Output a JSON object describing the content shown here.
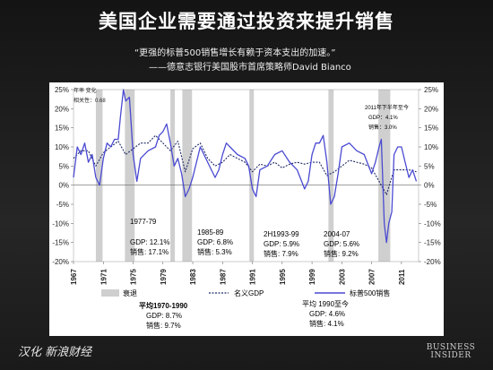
{
  "title": "美国企业需要通过投资来提升销售",
  "quote": {
    "text": "“更强的标普500销售增长有赖于资本支出的加速。”",
    "source": "——德意志银行美国股市首席策略师David   Bianco"
  },
  "footer": {
    "credit": "汉化 新浪财经",
    "logo_line1": "BUSINESS",
    "logo_line2": "INSIDER"
  },
  "colors": {
    "sales": "#4a4ad2",
    "gdp": "#1f2a66",
    "recession": "#cfcfcf"
  },
  "chart_data": {
    "type": "line",
    "ylim": [
      -20,
      25
    ],
    "yticks": [
      "25%",
      "20%",
      "15%",
      "10%",
      "5%",
      "0%",
      "-5%",
      "-10%",
      "-15%",
      "-20%"
    ],
    "yaxis_note": [
      "年率 变化",
      "相关性：0.68"
    ],
    "xticks": [
      "1967",
      "1971",
      "1975",
      "1979",
      "1983",
      "1987",
      "1991",
      "1995",
      "1999",
      "2003",
      "2007",
      "2011"
    ],
    "legend": [
      "衰退",
      "名义GDP",
      "标普500销售"
    ],
    "recessions": [
      [
        1970.0,
        1970.9
      ],
      [
        1973.9,
        1975.2
      ],
      [
        1980.0,
        1980.6
      ],
      [
        1981.6,
        1982.9
      ],
      [
        1990.6,
        1991.2
      ],
      [
        2001.2,
        2001.9
      ],
      [
        2007.9,
        2009.5
      ]
    ],
    "series": [
      {
        "name": "名义GDP",
        "x": [
          1967,
          1968,
          1969,
          1970,
          1971,
          1972,
          1973,
          1974,
          1975,
          1976,
          1977,
          1978,
          1979,
          1980,
          1981,
          1982,
          1983,
          1984,
          1985,
          1986,
          1987,
          1988,
          1989,
          1990,
          1991,
          1992,
          1993,
          1994,
          1995,
          1996,
          1997,
          1998,
          1999,
          2000,
          2001,
          2002,
          2003,
          2004,
          2005,
          2006,
          2007,
          2008,
          2009,
          2010,
          2011,
          2012,
          2013
        ],
        "y": [
          7,
          9,
          9,
          5,
          8.5,
          10,
          11.5,
          8,
          9.5,
          11,
          11,
          13,
          11,
          9,
          11.5,
          3.5,
          9.5,
          11,
          7,
          5,
          6,
          8,
          7,
          6,
          3.5,
          5.5,
          5,
          6,
          4.5,
          5.5,
          6,
          5.5,
          6,
          6,
          2.5,
          3.5,
          5,
          6.5,
          6,
          5.5,
          4.5,
          1,
          -2.5,
          4,
          4,
          4,
          3.5
        ]
      },
      {
        "name": "标普500销售",
        "x": [
          1967,
          1967.5,
          1968,
          1968.5,
          1969,
          1969.5,
          1970,
          1970.5,
          1971,
          1971.5,
          1972,
          1972.5,
          1973,
          1973.3,
          1973.7,
          1974,
          1974.5,
          1975,
          1975.5,
          1976,
          1977,
          1978,
          1978.5,
          1979,
          1979.5,
          1980,
          1980.5,
          1981,
          1981.5,
          1982,
          1982.5,
          1983,
          1983.5,
          1984,
          1985,
          1986,
          1986.5,
          1987,
          1987.5,
          1988,
          1989,
          1990,
          1990.5,
          1991,
          1991.5,
          1992,
          1993,
          1994,
          1995,
          1996,
          1997,
          1998,
          1998.5,
          1999,
          1999.5,
          2000,
          2000.5,
          2001,
          2001.5,
          2002,
          2002.5,
          2003,
          2004,
          2005,
          2006,
          2007,
          2007.5,
          2008,
          2008.3,
          2008.7,
          2009,
          2009.3,
          2009.7,
          2010,
          2010.5,
          2011,
          2011.5,
          2012,
          2012.5,
          2013
        ],
        "y": [
          2,
          10,
          8,
          11,
          6,
          8,
          2,
          0,
          7,
          11,
          10,
          12,
          12,
          18,
          25,
          22,
          23,
          8,
          1,
          7,
          9,
          10,
          13,
          14,
          16,
          11,
          5,
          7,
          3,
          -3,
          -1,
          2,
          6,
          10,
          6,
          2,
          4,
          8,
          11,
          10,
          8,
          7,
          5,
          -1,
          -3,
          4,
          5,
          8,
          9,
          6,
          4,
          -1,
          1,
          8,
          11,
          11,
          13,
          6,
          -5,
          -3,
          3,
          10,
          11,
          9,
          8,
          3,
          6,
          10,
          12,
          -10,
          -15,
          -10,
          -7,
          8,
          10,
          10,
          6,
          2,
          4,
          1
        ]
      }
    ]
  },
  "annotations": {
    "p1977": [
      "1977-79",
      "GDP: 12.1%",
      "销售: 17.1%"
    ],
    "p1985": [
      "1985-89",
      "GDP: 6.8%",
      "销售: 5.3%"
    ],
    "p1993": [
      "2H1993-99",
      "GDP: 5.9%",
      "销售: 7.9%"
    ],
    "p2004": [
      "2004-07",
      "GDP: 5.6%",
      "销售: 9.2%"
    ],
    "p2011": [
      "2011年下半年至今",
      "GDP：4.1%",
      "销售：3.0%"
    ],
    "avg1": [
      "平均1970-1990",
      "GDP: 8.7%",
      "销售: 9.7%"
    ],
    "avg2": [
      "平均 1990至今",
      "GDP: 4.6%",
      "销售: 4.1%"
    ]
  }
}
